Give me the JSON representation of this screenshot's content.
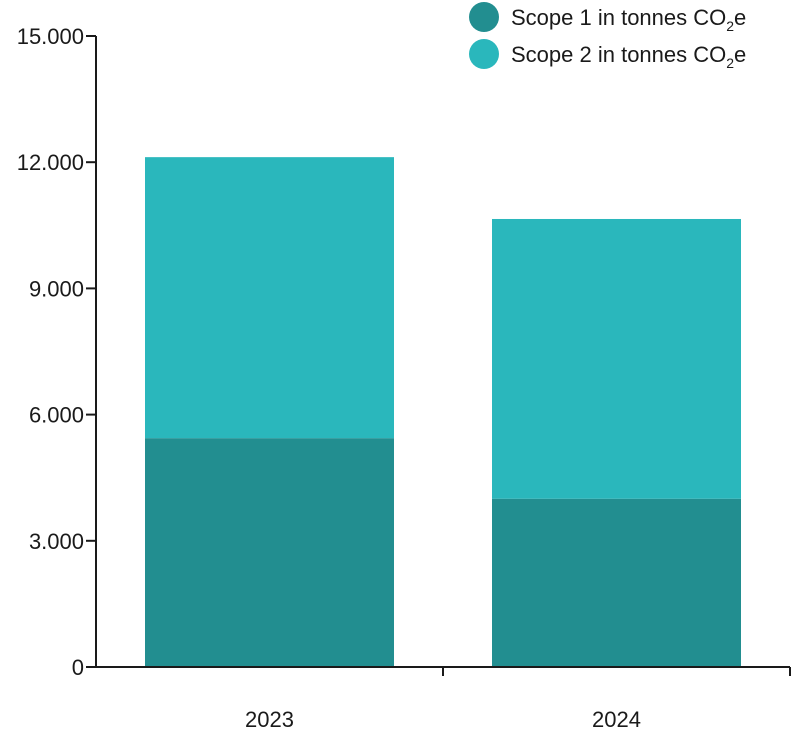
{
  "chart_data": {
    "type": "bar",
    "stacked": true,
    "title": "",
    "xlabel": "",
    "ylabel": "",
    "categories": [
      "2023",
      "2024"
    ],
    "series": [
      {
        "name": "Scope 1 in tonnes CO2e",
        "label_main": "Scope 1 in tonnes CO",
        "label_sub": "2",
        "label_end": "e",
        "color": "#228E90",
        "values": [
          5440,
          4000
        ]
      },
      {
        "name": "Scope 2 in tonnes CO2e",
        "label_main": "Scope 2 in tonnes CO",
        "label_sub": "2",
        "label_end": "e",
        "color": "#2AB7BC",
        "values": [
          6680,
          6650
        ]
      }
    ],
    "ylim": [
      0,
      15000
    ],
    "yticks": [
      0,
      3000,
      6000,
      9000,
      12000,
      15000
    ],
    "ytick_labels": [
      "0",
      "3.000",
      "6.000",
      "9.000",
      "12.000",
      "15.000"
    ],
    "grid": false,
    "legend_position": "top-right"
  }
}
